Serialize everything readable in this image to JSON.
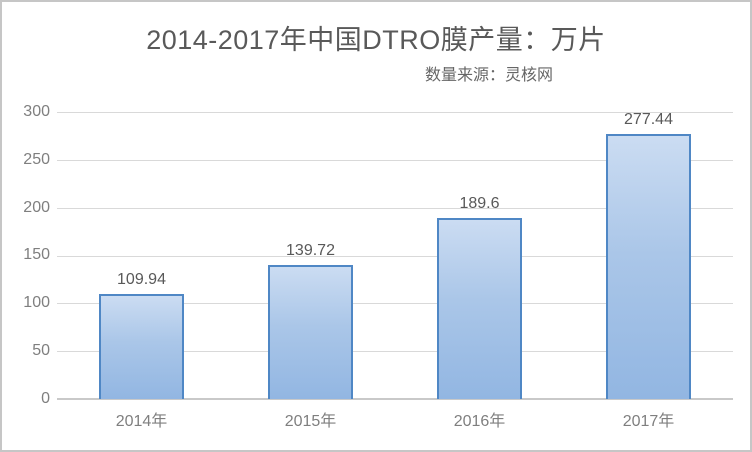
{
  "chart_data": {
    "type": "bar",
    "title": "2014-2017年中国DTRO膜产量：万片",
    "subtitle": "数量来源：灵核网",
    "categories": [
      "2014年",
      "2015年",
      "2016年",
      "2017年"
    ],
    "values": [
      109.94,
      139.72,
      189.6,
      277.44
    ],
    "data_labels": [
      "109.94",
      "139.72",
      "189.6",
      "277.44"
    ],
    "xlabel": "",
    "ylabel": "",
    "ylim": [
      0,
      300
    ],
    "ytick_interval": 50,
    "yticks": [
      "300",
      "250",
      "200",
      "150",
      "100",
      "50",
      "0"
    ],
    "grid": true,
    "legend": "none",
    "colors": {
      "bar_fill_top": "#cbdcf2",
      "bar_fill_bottom": "#92b6e2",
      "bar_border": "#4f87c5",
      "gridline": "#d9d9d9",
      "axis_line": "#c9c9c9",
      "title_text": "#595959",
      "tick_text": "#7f7f7f",
      "data_label_text": "#595959",
      "background": "#ffffff"
    }
  }
}
